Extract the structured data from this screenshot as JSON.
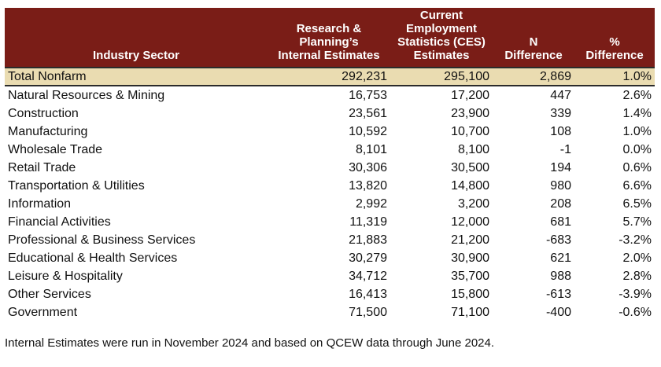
{
  "table": {
    "headers": [
      [
        "Industry Sector"
      ],
      [
        "Research &",
        "Planning’s",
        "Internal Estimates"
      ],
      [
        "Current",
        "Employment",
        "Statistics (CES)",
        "Estimates"
      ],
      [
        "N",
        "Difference"
      ],
      [
        "%",
        "Difference"
      ]
    ],
    "rows": [
      [
        "Total Nonfarm",
        "292,231",
        "295,100",
        "2,869",
        "1.0%"
      ],
      [
        "Natural Resources & Mining",
        "16,753",
        "17,200",
        "447",
        "2.6%"
      ],
      [
        "Construction",
        "23,561",
        "23,900",
        "339",
        "1.4%"
      ],
      [
        "Manufacturing",
        "10,592",
        "10,700",
        "108",
        "1.0%"
      ],
      [
        "Wholesale Trade",
        "8,101",
        "8,100",
        "-1",
        "0.0%"
      ],
      [
        "Retail Trade",
        "30,306",
        "30,500",
        "194",
        "0.6%"
      ],
      [
        "Transportation & Utilities",
        "13,820",
        "14,800",
        "980",
        "6.6%"
      ],
      [
        "Information",
        "2,992",
        "3,200",
        "208",
        "6.5%"
      ],
      [
        "Financial Activities",
        "11,319",
        "12,000",
        "681",
        "5.7%"
      ],
      [
        "Professional & Business Services",
        "21,883",
        "21,200",
        "-683",
        "-3.2%"
      ],
      [
        "Educational & Health Services",
        "30,279",
        "30,900",
        "621",
        "2.0%"
      ],
      [
        "Leisure & Hospitality",
        "34,712",
        "35,700",
        "988",
        "2.8%"
      ],
      [
        "Other Services",
        "16,413",
        "15,800",
        "-613",
        "-3.9%"
      ],
      [
        "Government",
        "71,500",
        "71,100",
        "-400",
        "-0.6%"
      ]
    ]
  },
  "footnote": "Internal Estimates were run in November 2024 and based on QCEW data through June 2024."
}
